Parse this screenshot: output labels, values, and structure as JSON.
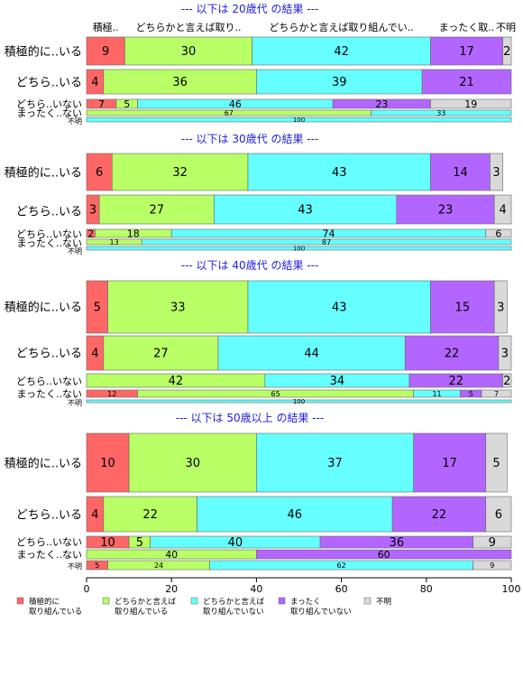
{
  "chart_data": {
    "type": "bar",
    "stacked": true,
    "orientation": "horizontal",
    "xlim": [
      0,
      100
    ],
    "x_ticks": [
      0,
      20,
      40,
      60,
      80,
      100
    ],
    "grid": false,
    "legend_position": "bottom",
    "top_headers": [
      "積極..",
      "どちらかと言えば取り..",
      "どちらかと言えば取り組んでい..",
      "まったく取..",
      "不明"
    ],
    "series": [
      {
        "name": "積極的に\n取り組んでいる",
        "color": "#FF6666"
      },
      {
        "name": "どちらかと言えば\n取り組んでいる",
        "color": "#B9FF66"
      },
      {
        "name": "どちらかと言えば\n取り組んでいない",
        "color": "#66FFFF"
      },
      {
        "name": "まったく\n取り組んでいない",
        "color": "#B366FF"
      },
      {
        "name": "不明",
        "color": "#D9D9D9"
      }
    ],
    "panels": [
      {
        "title": "--- 以下は 20歳代 の結果 ---",
        "rows": [
          {
            "label": "積極的に..いる",
            "values": [
              9,
              30,
              42,
              17,
              2
            ]
          },
          {
            "label": "どちら..いる",
            "values": [
              4,
              36,
              39,
              21,
              0
            ]
          },
          {
            "label": "どちら..いない",
            "values": [
              7,
              5,
              46,
              23,
              19
            ]
          },
          {
            "label": "まったく..ない",
            "values": [
              0,
              67,
              33,
              0,
              0
            ]
          },
          {
            "label": "不明",
            "values": [
              0,
              0,
              100,
              0,
              0
            ]
          }
        ]
      },
      {
        "title": "--- 以下は 30歳代 の結果 ---",
        "rows": [
          {
            "label": "積極的に..いる",
            "values": [
              6,
              32,
              43,
              14,
              3
            ]
          },
          {
            "label": "どちら..いる",
            "values": [
              3,
              27,
              43,
              23,
              4
            ]
          },
          {
            "label": "どちら..いない",
            "values": [
              2,
              18,
              74,
              0,
              6
            ]
          },
          {
            "label": "まったく..ない",
            "values": [
              0,
              13,
              87,
              0,
              0
            ]
          },
          {
            "label": "不明",
            "values": [
              0,
              0,
              100,
              0,
              0
            ]
          }
        ]
      },
      {
        "title": "--- 以下は 40歳代 の結果 ---",
        "rows": [
          {
            "label": "積極的に..いる",
            "values": [
              5,
              33,
              43,
              15,
              3
            ]
          },
          {
            "label": "どちら..いる",
            "values": [
              4,
              27,
              44,
              22,
              3
            ]
          },
          {
            "label": "どちら..いない",
            "values": [
              0,
              42,
              34,
              22,
              2
            ]
          },
          {
            "label": "まったく..ない",
            "values": [
              12,
              65,
              11,
              5,
              7
            ]
          },
          {
            "label": "不明",
            "values": [
              0,
              0,
              100,
              0,
              0
            ]
          }
        ]
      },
      {
        "title": "--- 以下は 50歳以上 の結果 ---",
        "rows": [
          {
            "label": "積極的に..いる",
            "values": [
              10,
              30,
              37,
              17,
              5
            ]
          },
          {
            "label": "どちら..いる",
            "values": [
              4,
              22,
              46,
              22,
              6
            ]
          },
          {
            "label": "どちら..いない",
            "values": [
              10,
              5,
              40,
              36,
              9
            ]
          },
          {
            "label": "まったく..ない",
            "values": [
              0,
              40,
              0,
              60,
              0
            ]
          },
          {
            "label": "不明",
            "values": [
              5,
              24,
              62,
              0,
              9
            ]
          }
        ]
      }
    ]
  }
}
